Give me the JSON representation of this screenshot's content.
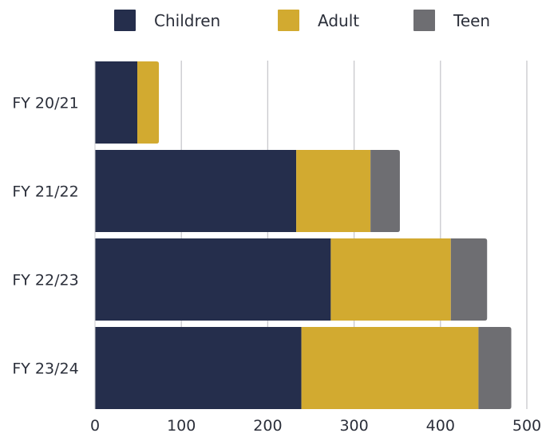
{
  "chart_data": {
    "type": "bar",
    "orientation": "horizontal",
    "stacked": true,
    "categories": [
      "FY 20/21",
      "FY 21/22",
      "FY 22/23",
      "FY 23/24"
    ],
    "series": [
      {
        "name": "Children",
        "color": "#252e4c",
        "values": [
          49,
          233,
          273,
          239
        ]
      },
      {
        "name": "Adult",
        "color": "#d2aa30",
        "values": [
          25,
          86,
          139,
          205
        ]
      },
      {
        "name": "Teen",
        "color": "#6e6e72",
        "values": [
          0,
          34,
          42,
          38
        ]
      }
    ],
    "xticks": [
      0,
      100,
      200,
      300,
      400,
      500
    ],
    "xlim": [
      0,
      500
    ],
    "grid": "vertical",
    "legend": "top",
    "title": "",
    "xlabel": "",
    "ylabel": ""
  }
}
